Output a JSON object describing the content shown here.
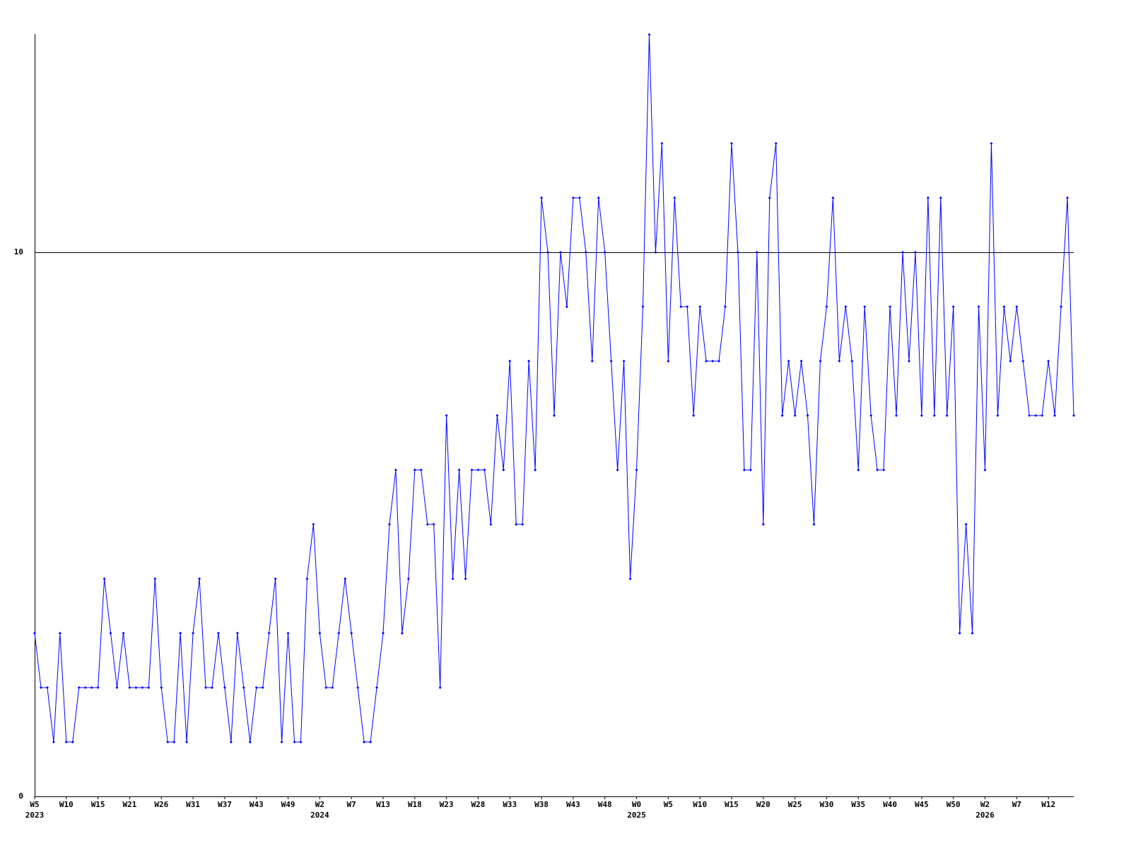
{
  "chart_data": {
    "type": "line",
    "categories": [
      "W5",
      null,
      null,
      null,
      null,
      "W10",
      null,
      null,
      null,
      null,
      "W15",
      null,
      null,
      null,
      null,
      "W21",
      null,
      null,
      null,
      null,
      "W26",
      null,
      null,
      null,
      null,
      "W31",
      null,
      null,
      null,
      null,
      "W37",
      null,
      null,
      null,
      null,
      "W43",
      null,
      null,
      null,
      null,
      "W49",
      null,
      null,
      null,
      null,
      "W2",
      null,
      null,
      null,
      null,
      "W7",
      null,
      null,
      null,
      null,
      "W13",
      null,
      null,
      null,
      null,
      "W18",
      null,
      null,
      null,
      null,
      "W23",
      null,
      null,
      null,
      null,
      "W28",
      null,
      null,
      null,
      null,
      "W33",
      null,
      null,
      null,
      null,
      "W38",
      null,
      null,
      null,
      null,
      "W43",
      null,
      null,
      null,
      null,
      "W48",
      null,
      null,
      null,
      null,
      "W0",
      null,
      null,
      null,
      null,
      "W5",
      null,
      null,
      null,
      null,
      "W10",
      null,
      null,
      null,
      null,
      "W15",
      null,
      null,
      null,
      null,
      "W20",
      null,
      null,
      null,
      null,
      "W25",
      null,
      null,
      null,
      null,
      "W30",
      null,
      null,
      null,
      null,
      "W35",
      null,
      null,
      null,
      null,
      "W40",
      null,
      null,
      null,
      null,
      "W45",
      null,
      null,
      null,
      null,
      "W50",
      null,
      null,
      null,
      null,
      "W2",
      null,
      null,
      null,
      null,
      "W7",
      null,
      null,
      null,
      null,
      "W12",
      null,
      null,
      null,
      null
    ],
    "category_years": [
      "2023",
      null,
      null,
      null,
      null,
      null,
      null,
      null,
      null,
      null,
      null,
      null,
      null,
      null,
      null,
      null,
      null,
      null,
      null,
      null,
      null,
      null,
      null,
      null,
      null,
      null,
      null,
      null,
      null,
      null,
      null,
      null,
      null,
      null,
      null,
      null,
      null,
      null,
      null,
      null,
      null,
      null,
      null,
      null,
      null,
      "2024",
      null,
      null,
      null,
      null,
      null,
      null,
      null,
      null,
      null,
      null,
      null,
      null,
      null,
      null,
      null,
      null,
      null,
      null,
      null,
      null,
      null,
      null,
      null,
      null,
      null,
      null,
      null,
      null,
      null,
      null,
      null,
      null,
      null,
      null,
      null,
      null,
      null,
      null,
      null,
      null,
      null,
      null,
      null,
      null,
      null,
      null,
      null,
      null,
      null,
      "2025",
      null,
      null,
      null,
      null,
      null,
      null,
      null,
      null,
      null,
      null,
      null,
      null,
      null,
      null,
      null,
      null,
      null,
      null,
      null,
      null,
      null,
      null,
      null,
      null,
      null,
      null,
      null,
      null,
      null,
      null,
      null,
      null,
      null,
      null,
      null,
      null,
      null,
      null,
      null,
      null,
      null,
      null,
      null,
      null,
      null,
      null,
      null,
      null,
      null,
      null,
      null,
      null,
      null,
      null,
      "2026",
      null,
      null,
      null,
      null,
      null,
      null,
      null,
      null,
      null,
      null,
      null,
      null,
      null,
      null
    ],
    "series": [
      {
        "color": "#0000ff",
        "values": [
          3,
          2,
          2,
          1,
          3,
          1,
          1,
          2,
          2,
          2,
          2,
          4,
          3,
          2,
          3,
          2,
          2,
          2,
          2,
          4,
          2,
          1,
          1,
          3,
          1,
          3,
          4,
          2,
          2,
          3,
          2,
          1,
          3,
          2,
          1,
          2,
          2,
          3,
          4,
          1,
          3,
          1,
          1,
          4,
          5,
          3,
          2,
          2,
          3,
          4,
          3,
          2,
          1,
          1,
          2,
          3,
          5,
          6,
          3,
          4,
          6,
          6,
          5,
          5,
          2,
          7,
          4,
          6,
          4,
          6,
          6,
          6,
          5,
          7,
          6,
          8,
          5,
          5,
          8,
          6,
          11,
          10,
          7,
          10,
          9,
          11,
          11,
          10,
          8,
          11,
          10,
          8,
          6,
          8,
          4,
          6,
          9,
          14,
          10,
          12,
          8,
          11,
          9,
          9,
          7,
          9,
          8,
          8,
          8,
          9,
          12,
          10,
          6,
          6,
          10,
          5,
          11,
          12,
          7,
          8,
          7,
          8,
          7,
          5,
          8,
          9,
          11,
          8,
          9,
          8,
          6,
          9,
          7,
          6,
          6,
          9,
          7,
          10,
          8,
          10,
          7,
          11,
          7,
          11,
          7,
          9,
          3,
          5,
          3,
          9,
          6,
          12,
          7,
          9,
          8,
          9,
          8,
          7,
          7,
          7,
          8,
          7,
          9,
          11,
          7
        ]
      }
    ],
    "ylim": [
      0,
      14
    ],
    "yticks": [
      0,
      10
    ],
    "grid": true
  }
}
